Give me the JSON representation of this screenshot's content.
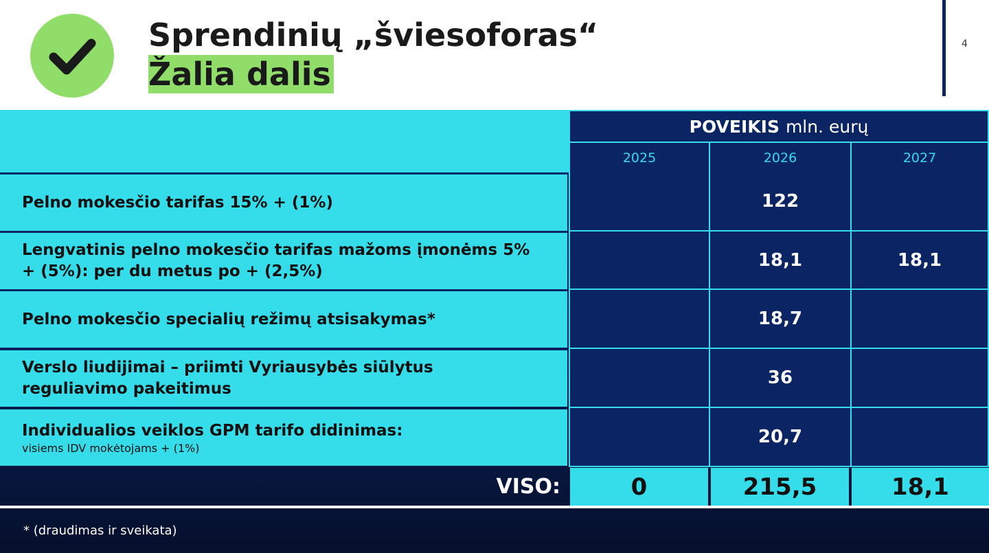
{
  "header": {
    "title": "Sprendinių „šviesoforas“",
    "subtitle": "Žalia dalis",
    "page_number": "4",
    "check_icon": "checkmark-icon",
    "accent_green": "#90dd6a"
  },
  "table": {
    "impact_bold": "POVEIKIS",
    "impact_unit": "mln. eurų",
    "years": [
      "2025",
      "2026",
      "2027"
    ],
    "rows": [
      {
        "label": "Pelno mokesčio tarifas 15% + (1%)",
        "values": [
          "",
          "122",
          ""
        ]
      },
      {
        "label": "Lengvatinis pelno mokesčio tarifas mažoms įmonėms 5% + (5%): per du metus po + (2,5%)",
        "values": [
          "",
          "18,1",
          "18,1"
        ]
      },
      {
        "label": "Pelno mokesčio specialių režimų atsisakymas*",
        "values": [
          "",
          "18,7",
          ""
        ]
      },
      {
        "label": "Verslo liudijimai – priimti Vyriausybės siūlytus reguliavimo pakeitimus",
        "values": [
          "",
          "36",
          ""
        ]
      },
      {
        "label": "Individualios veiklos GPM tarifo didinimas:",
        "note": "visiems IDV mokėtojams + (1%)",
        "values": [
          "",
          "20,7",
          ""
        ]
      }
    ],
    "total_label": "VISO:",
    "totals": [
      "0",
      "215,5",
      "18,1"
    ]
  },
  "footnote": "* (draudimas ir sveikata)",
  "colors": {
    "cyan": "#35dcea",
    "navy": "#0b2463",
    "dark": "#060f2c"
  }
}
